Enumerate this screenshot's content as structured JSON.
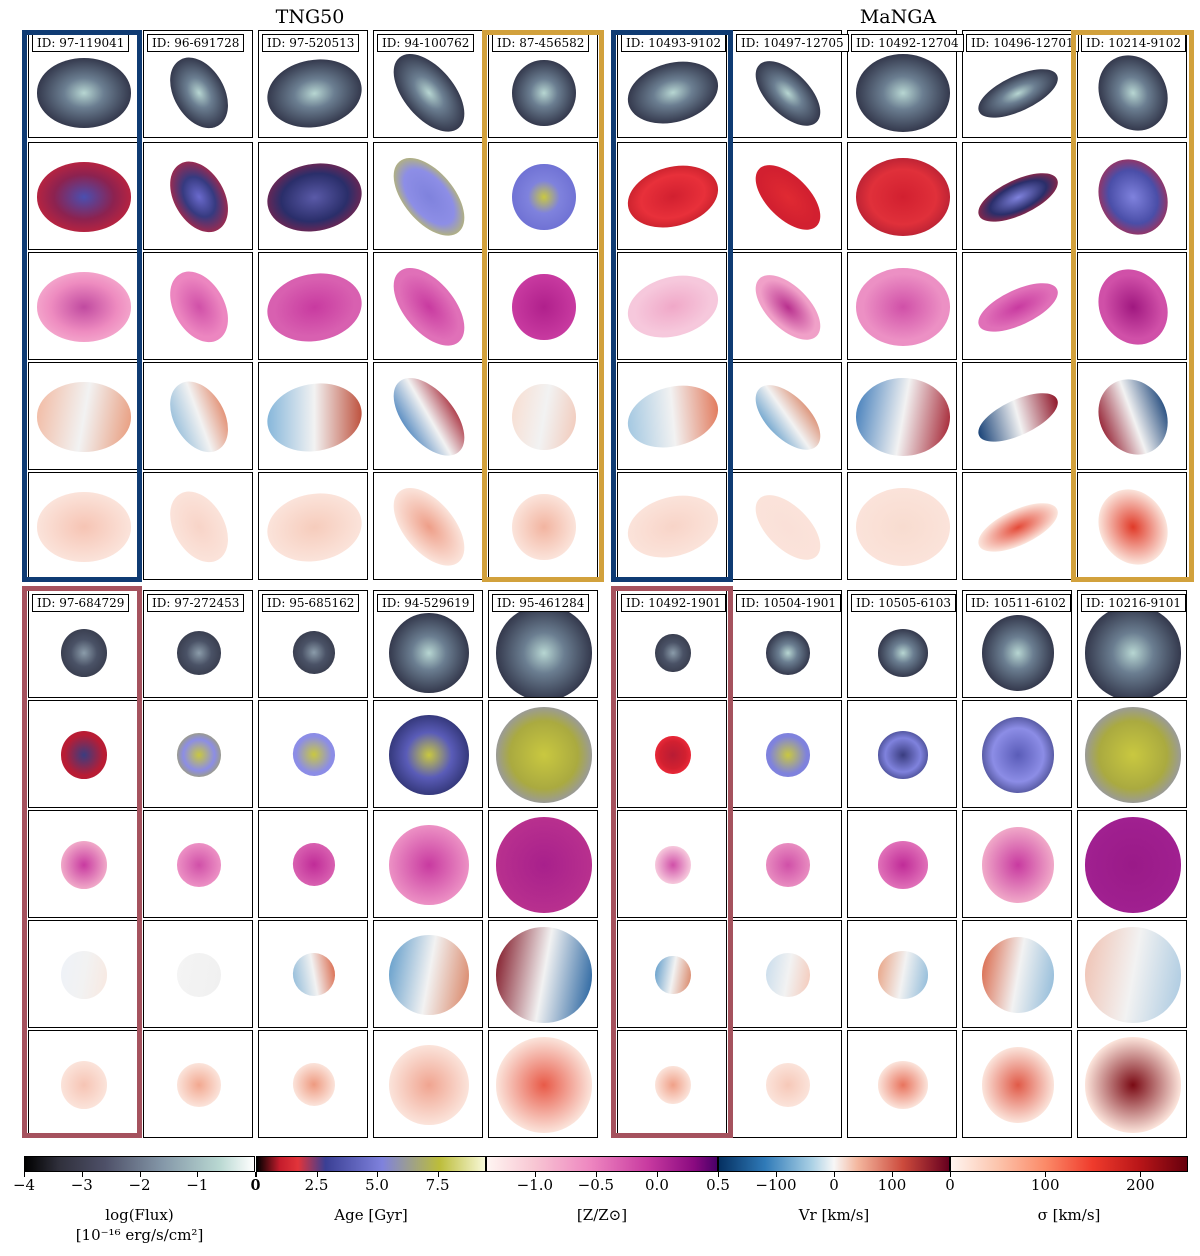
{
  "titles": {
    "left": "TNG50",
    "right": "MaNGA"
  },
  "top_ids": {
    "tng": [
      "ID: 97-119041",
      "ID: 96-691728",
      "ID: 97-520513",
      "ID: 94-100762",
      "ID: 87-456582"
    ],
    "manga": [
      "ID: 10493-9102",
      "ID: 10497-12705",
      "ID: 10492-12704",
      "ID: 10496-12701",
      "ID: 10214-9102"
    ]
  },
  "bottom_ids": {
    "tng": [
      "ID: 97-684729",
      "ID: 97-272453",
      "ID: 95-685162",
      "ID: 94-529619",
      "ID: 95-461284"
    ],
    "manga": [
      "ID: 10492-1901",
      "ID: 10504-1901",
      "ID: 10505-6103",
      "ID: 10511-6102",
      "ID: 10216-9101"
    ]
  },
  "highlight_colors": {
    "blue": "#0f3b73",
    "gold": "#d2a13c",
    "rose": "#a5525e"
  },
  "colorbars": [
    {
      "label": "log(Flux)",
      "label2": "[10⁻¹⁶ erg/s/cm²]",
      "ticks": [
        "−4",
        "−3",
        "−2",
        "−1",
        "0"
      ],
      "range": [
        -4,
        0
      ],
      "tickvals": [
        -4,
        -3,
        -2,
        -1,
        0
      ]
    },
    {
      "label": "Age [Gyr]",
      "ticks": [
        "0",
        "2.5",
        "5.0",
        "7.5"
      ],
      "range": [
        0,
        9.5
      ],
      "tickvals": [
        0,
        2.5,
        5.0,
        7.5
      ]
    },
    {
      "label": "[Z/Z⊙]",
      "ticks": [
        "−1.0",
        "−0.5",
        "0.0",
        "0.5"
      ],
      "range": [
        -1.4,
        0.5
      ],
      "tickvals": [
        -1.0,
        -0.5,
        0.0,
        0.5
      ]
    },
    {
      "label": "Vr [km/s]",
      "ticks": [
        "−100",
        "0",
        "100"
      ],
      "range": [
        -200,
        200
      ],
      "tickvals": [
        -100,
        0,
        100
      ]
    },
    {
      "label": "σ [km/s]",
      "ticks": [
        "0",
        "100",
        "200"
      ],
      "range": [
        0,
        250
      ],
      "tickvals": [
        0,
        100,
        200
      ]
    }
  ]
}
